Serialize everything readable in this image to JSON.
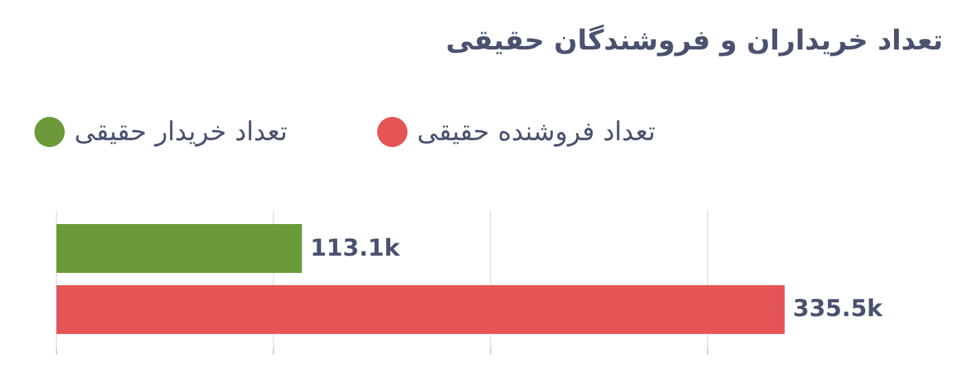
{
  "chart_data": {
    "type": "bar",
    "orientation": "horizontal",
    "title": "تعداد خریداران و فروشندگان حقیقی",
    "categories": [
      null
    ],
    "series": [
      {
        "name": "تعداد خریدار حقیقی",
        "color": "#6a9a3a",
        "values": [
          113100
        ],
        "value_labels": [
          "113.1k"
        ]
      },
      {
        "name": "تعداد فروشنده حقیقی",
        "color": "#e65555",
        "values": [
          335500
        ],
        "value_labels": [
          "335.5k"
        ]
      }
    ],
    "xticks": [
      {
        "value": 0,
        "label": null
      },
      {
        "value": 100000,
        "label": null
      },
      {
        "value": 200000,
        "label": null
      },
      {
        "value": 300000,
        "label": null
      }
    ],
    "grid": "x",
    "legend": "top"
  }
}
